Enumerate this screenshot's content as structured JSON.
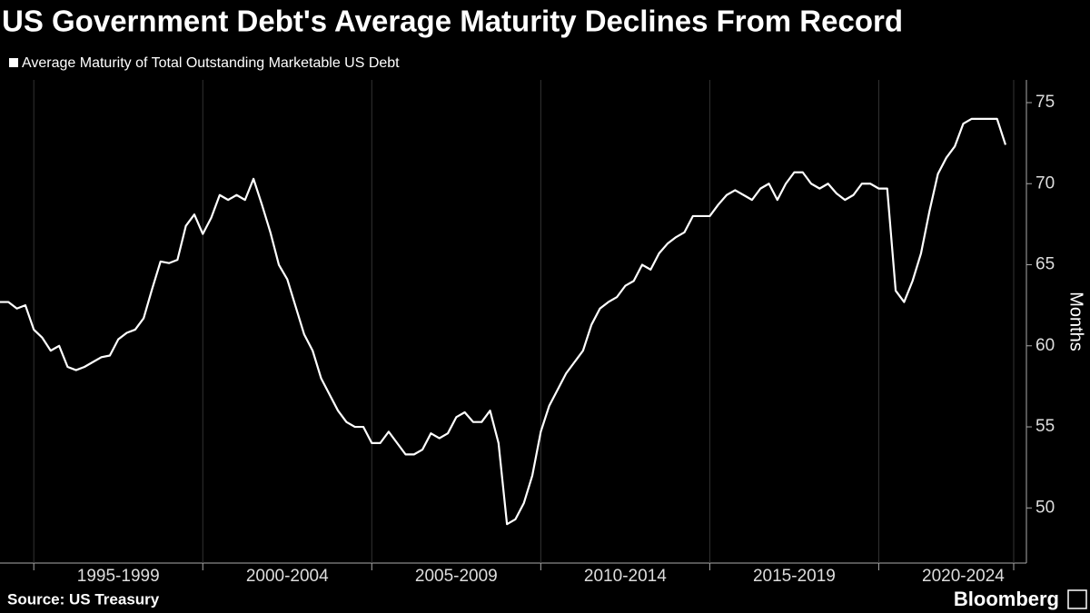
{
  "chart_data": {
    "type": "line",
    "title": "US Government Debt's Average Maturity Declines From Record",
    "legend_label": "Average Maturity of Total Outstanding Marketable US Debt",
    "y_axis_label": "Months",
    "source": "Source: US Treasury",
    "brand": "Bloomberg",
    "x": [
      1994.0,
      1994.25,
      1994.5,
      1994.75,
      1995.0,
      1995.25,
      1995.5,
      1995.75,
      1996.0,
      1996.25,
      1996.5,
      1996.75,
      1997.0,
      1997.25,
      1997.5,
      1997.75,
      1998.0,
      1998.25,
      1998.5,
      1998.75,
      1999.0,
      1999.25,
      1999.5,
      1999.75,
      2000.0,
      2000.25,
      2000.5,
      2000.75,
      2001.0,
      2001.25,
      2001.5,
      2001.75,
      2002.0,
      2002.25,
      2002.5,
      2002.75,
      2003.0,
      2003.25,
      2003.5,
      2003.75,
      2004.0,
      2004.25,
      2004.5,
      2004.75,
      2005.0,
      2005.25,
      2005.5,
      2005.75,
      2006.0,
      2006.25,
      2006.5,
      2006.75,
      2007.0,
      2007.25,
      2007.5,
      2007.75,
      2008.0,
      2008.25,
      2008.5,
      2008.75,
      2009.0,
      2009.25,
      2009.5,
      2009.75,
      2010.0,
      2010.25,
      2010.5,
      2010.75,
      2011.0,
      2011.25,
      2011.5,
      2011.75,
      2012.0,
      2012.25,
      2012.5,
      2012.75,
      2013.0,
      2013.25,
      2013.5,
      2013.75,
      2014.0,
      2014.25,
      2014.5,
      2014.75,
      2015.0,
      2015.25,
      2015.5,
      2015.75,
      2016.0,
      2016.25,
      2016.5,
      2016.75,
      2017.0,
      2017.25,
      2017.5,
      2017.75,
      2018.0,
      2018.25,
      2018.5,
      2018.75,
      2019.0,
      2019.25,
      2019.5,
      2019.75,
      2020.0,
      2020.25,
      2020.5,
      2020.75,
      2021.0,
      2021.25,
      2021.5,
      2021.75,
      2022.0,
      2022.25,
      2022.5,
      2022.75,
      2023.0,
      2023.25,
      2023.5,
      2023.75
    ],
    "series": [
      {
        "name": "Average Maturity of Total Outstanding Marketable US Debt",
        "color": "#ffffff",
        "values": [
          62.7,
          62.7,
          62.3,
          62.5,
          61.0,
          60.5,
          59.7,
          60.0,
          58.7,
          58.5,
          58.7,
          59.0,
          59.3,
          59.4,
          60.4,
          60.8,
          61.0,
          61.7,
          63.5,
          65.2,
          65.1,
          65.3,
          67.4,
          68.1,
          66.9,
          67.9,
          69.3,
          69.0,
          69.3,
          69.0,
          70.3,
          68.7,
          67.0,
          65.0,
          64.1,
          62.4,
          60.7,
          59.7,
          58.0,
          57.0,
          56.0,
          55.3,
          55.0,
          55.0,
          54.0,
          54.0,
          54.7,
          54.0,
          53.3,
          53.3,
          53.6,
          54.6,
          54.3,
          54.6,
          55.6,
          55.9,
          55.3,
          55.3,
          56.0,
          54.0,
          49.0,
          49.3,
          50.3,
          52.0,
          54.7,
          56.3,
          57.3,
          58.3,
          59.0,
          59.7,
          61.3,
          62.3,
          62.7,
          63.0,
          63.7,
          64.0,
          65.0,
          64.7,
          65.7,
          66.3,
          66.7,
          67.0,
          68.0,
          68.0,
          68.0,
          68.7,
          69.3,
          69.6,
          69.3,
          69.0,
          69.7,
          70.0,
          69.0,
          70.0,
          70.7,
          70.7,
          70.0,
          69.7,
          70.0,
          69.4,
          69.0,
          69.3,
          70.0,
          70.0,
          69.7,
          69.7,
          63.4,
          62.7,
          64.0,
          65.7,
          68.3,
          70.6,
          71.6,
          72.3,
          73.7,
          74.0,
          74.0,
          74.0,
          74.0,
          72.4
        ]
      }
    ],
    "xlim": [
      1994,
      2024.1
    ],
    "xticks": [
      {
        "value": 1997.5,
        "label": "1995-1999"
      },
      {
        "value": 2002.5,
        "label": "2000-2004"
      },
      {
        "value": 2007.5,
        "label": "2005-2009"
      },
      {
        "value": 2012.5,
        "label": "2010-2014"
      },
      {
        "value": 2017.5,
        "label": "2015-2019"
      },
      {
        "value": 2022.5,
        "label": "2020-2024"
      }
    ],
    "ylim": [
      46.6,
      76.4
    ],
    "yticks": [
      50,
      55,
      60,
      65,
      70,
      75
    ],
    "y_axis_side": "right",
    "grid": true
  }
}
